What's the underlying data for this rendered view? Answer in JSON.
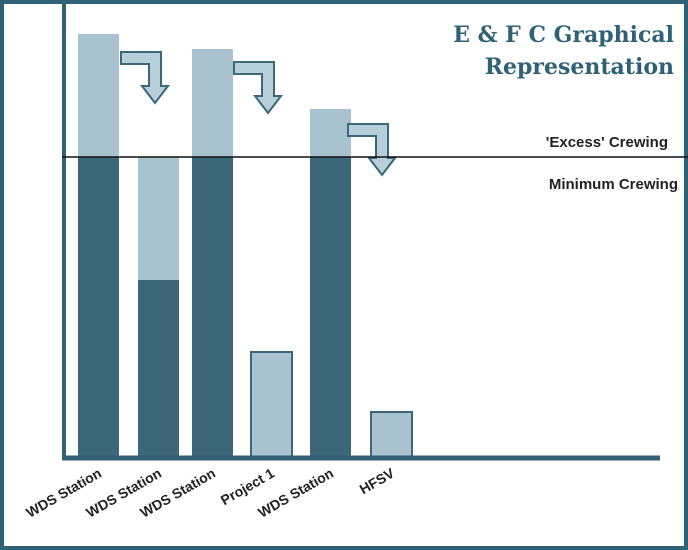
{
  "chart_data": {
    "type": "bar",
    "title": "E & F C Graphical Representation",
    "title_lines": [
      "E & F C Graphical",
      "Representation"
    ],
    "reference_line": {
      "label_above": "'Excess' Crewing",
      "label_below": "Minimum Crewing"
    },
    "categories": [
      "WDS Station",
      "WDS Station",
      "WDS Station",
      "Project 1",
      "WDS Station",
      "HFSV"
    ],
    "y_unit_note": "Bar heights are relative; the minimum-crewing line equals 100",
    "series": [
      {
        "segment": "minimum",
        "values": [
          100,
          59,
          100,
          0,
          100,
          0
        ]
      },
      {
        "segment": "excess",
        "values": [
          41,
          41,
          36,
          35,
          16,
          15
        ]
      }
    ],
    "arrows": [
      {
        "from_bar": 1,
        "to_bar": 2
      },
      {
        "from_bar": 3,
        "to_bar": 4
      },
      {
        "from_bar": 5,
        "to_bar": 6
      }
    ],
    "ylim": [
      0,
      165
    ],
    "grid": false,
    "legend": "none",
    "colors": {
      "frame": "#2f6277",
      "axis": "#2f6277",
      "minimum_segment": "#3b6778",
      "excess_segment": "#a9c2cf",
      "excess_border": "#3b6778",
      "title": "#2f6277",
      "line": "#111111",
      "text": "#222222",
      "arrow_fill": "#b6cfdb",
      "arrow_stroke": "#3b6778"
    }
  }
}
